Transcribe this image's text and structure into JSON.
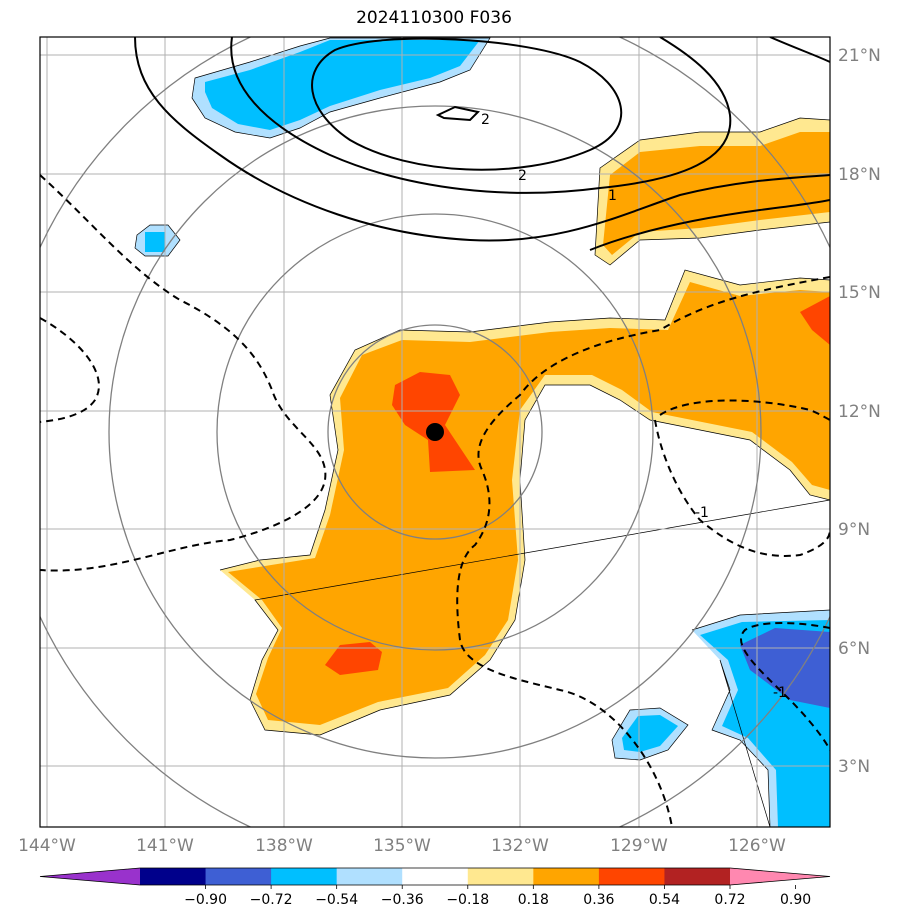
{
  "title": "2024110300 F036",
  "map": {
    "lon_labels": [
      "144°W",
      "141°W",
      "138°W",
      "135°W",
      "132°W",
      "129°W",
      "126°W"
    ],
    "lat_labels": [
      "21°N",
      "18°N",
      "15°N",
      "12°N",
      "9°N",
      "6°N",
      "3°N"
    ],
    "contour_labels": [
      "2",
      "2",
      "1",
      "-1",
      "-1"
    ],
    "storm_center": {
      "lon": -134.2,
      "lat": 11.4
    }
  },
  "colorbar": {
    "tick_labels": [
      "−0.90",
      "−0.72",
      "−0.54",
      "−0.36",
      "−0.18",
      "0.18",
      "0.36",
      "0.54",
      "0.72",
      "0.90"
    ],
    "colors": [
      "#9932CC",
      "#00008B",
      "#3E5FD4",
      "#00BFFF",
      "#B0E0FF",
      "#FFFFFF",
      "#FFE890",
      "#FFA500",
      "#FF4500",
      "#B22222",
      "#FF88B0"
    ]
  }
}
